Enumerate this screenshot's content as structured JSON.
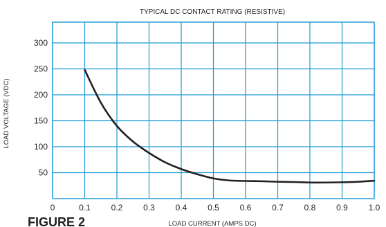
{
  "chart_data": {
    "type": "line",
    "title": "TYPICAL DC CONTACT RATING (RESISTIVE)",
    "xlabel": "LOAD CURRENT (AMPS DC)",
    "ylabel": "LOAD VOLTAGE (VDC)",
    "xlim": [
      0,
      1.0
    ],
    "ylim": [
      0,
      340
    ],
    "grid": true,
    "xticks": [
      "0",
      "0.1",
      "0.2",
      "0.3",
      "0.4",
      "0.5",
      "0.6",
      "0.7",
      "0.8",
      "0.9",
      "1.0"
    ],
    "yticks": [
      "50",
      "100",
      "150",
      "200",
      "250",
      "300"
    ],
    "series": [
      {
        "x": [
          0.1,
          0.15,
          0.2,
          0.25,
          0.3,
          0.35,
          0.4,
          0.45,
          0.5,
          0.55,
          0.6,
          0.65,
          0.7,
          0.75,
          0.8,
          0.85,
          0.9,
          0.95,
          1.0
        ],
        "y": [
          248,
          185,
          140,
          110,
          88,
          70,
          57,
          47,
          39,
          35,
          34,
          33.5,
          32.5,
          32,
          31,
          31,
          31.5,
          32.5,
          34.5
        ]
      }
    ],
    "colors": {
      "grid": "#1b9ad6",
      "line": "#231f20",
      "text": "#231f20"
    }
  },
  "figure_label": "FIGURE 2"
}
